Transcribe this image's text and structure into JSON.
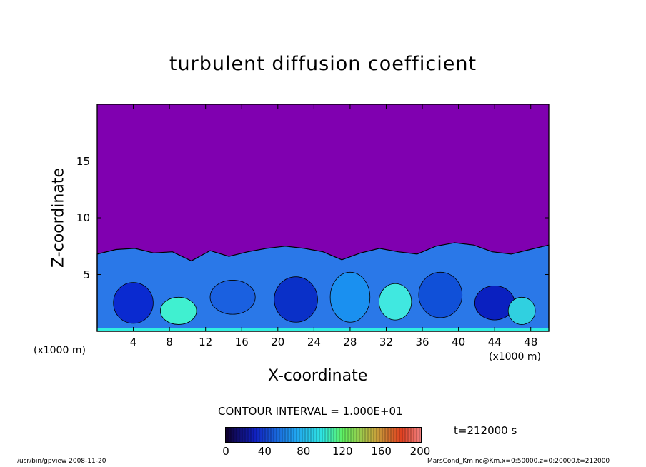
{
  "chart_data": {
    "type": "heatmap",
    "title": "turbulent diffusion coefficient",
    "xlabel": "X-coordinate",
    "ylabel": "Z-coordinate",
    "x_unit_left": "(x1000 m)",
    "x_unit_right": "(x1000 m)",
    "xlim": [
      0,
      50
    ],
    "ylim": [
      0,
      20
    ],
    "xticks": [
      4,
      8,
      12,
      16,
      20,
      24,
      28,
      32,
      36,
      40,
      44,
      48
    ],
    "yticks": [
      5,
      10,
      15
    ],
    "contour_interval": "CONTOUR INTERVAL = 1.000E+01",
    "time_label": "t=212000 s",
    "colorbar": {
      "min": 0,
      "max": 200,
      "ticks": [
        0,
        40,
        80,
        120,
        160,
        200
      ]
    },
    "turbulent_layer_top_km": [
      6.8,
      7.2,
      7.3,
      6.9,
      7.0,
      6.2,
      7.1,
      6.6,
      7.0,
      7.3,
      7.5,
      7.3,
      7.0,
      6.3,
      6.9,
      7.3,
      7.0,
      6.8,
      7.5,
      7.8,
      7.6,
      7.0,
      6.8,
      7.2,
      7.6
    ]
  },
  "footer": {
    "left": "/usr/bin/gpview   2008-11-20",
    "right": "MarsCond_Km.nc@Km,x=0:50000,z=0:20000,t=212000"
  },
  "colors": {
    "stable_region": "#8000b0",
    "turbulent_low": "#0018c8",
    "turbulent_mid": "#2090f0",
    "turbulent_high": "#30f0e0"
  }
}
